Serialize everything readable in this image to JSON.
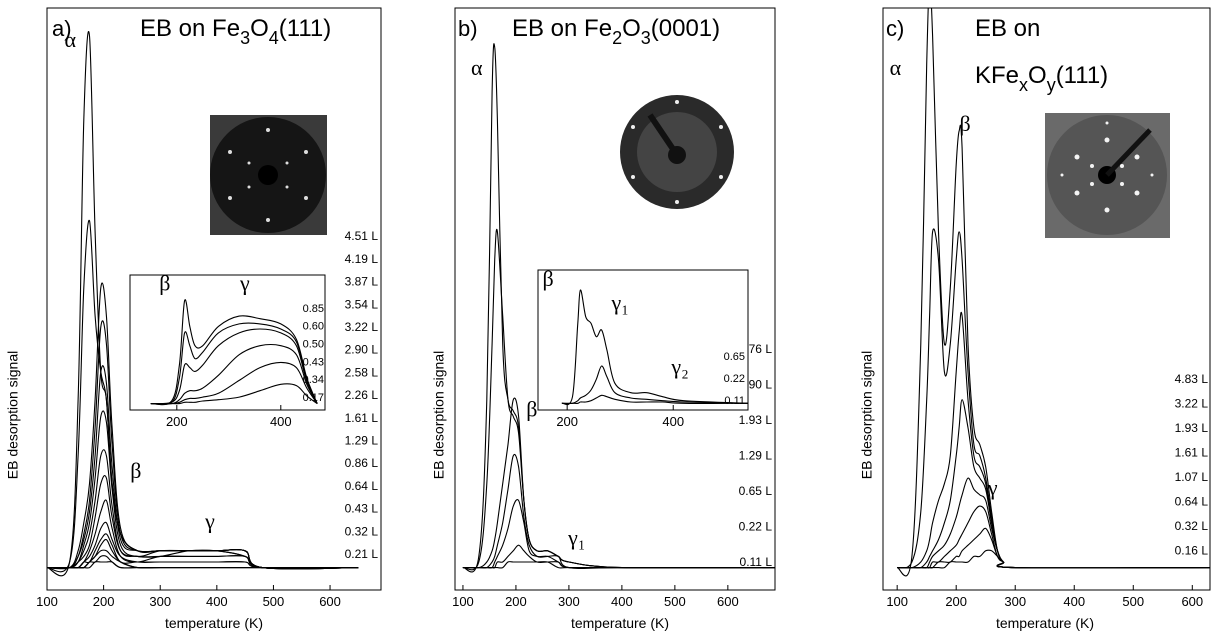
{
  "chart_data": [
    {
      "type": "line",
      "panel_label": "a)",
      "title": [
        [
          {
            "text": "EB on Fe"
          },
          {
            "text": "3",
            "sub": true
          },
          {
            "text": "O"
          },
          {
            "text": "4",
            "sub": true
          },
          {
            "text": "(111)"
          }
        ]
      ],
      "x_label": "temperature (K)",
      "y_label": "EB desorption signal",
      "color": "#000000",
      "xlim": [
        100,
        690
      ],
      "ylim": [
        -4,
        100
      ],
      "xticks": [
        100,
        200,
        300,
        400,
        500,
        600
      ],
      "x": [
        100,
        140,
        155,
        165,
        175,
        185,
        195,
        205,
        215,
        230,
        260,
        300,
        350,
        400,
        450,
        480,
        650
      ],
      "series": [
        {
          "name": "4.51 L",
          "values": [
            0,
            1,
            30,
            80,
            95,
            60,
            35,
            30,
            15,
            6,
            3,
            3,
            3,
            3,
            3,
            0,
            0
          ]
        },
        {
          "name": "4.19 L",
          "values": [
            0,
            1,
            20,
            50,
            62,
            45,
            35,
            30,
            15,
            6,
            3,
            3,
            3,
            3,
            3,
            0,
            0
          ]
        },
        {
          "name": "3.87 L",
          "values": [
            0,
            0,
            3,
            8,
            15,
            30,
            50,
            45,
            25,
            7,
            3,
            3,
            3,
            3,
            3,
            0,
            0
          ]
        },
        {
          "name": "3.54 L",
          "values": [
            0,
            0,
            2,
            6,
            12,
            25,
            43,
            40,
            22,
            6,
            3,
            3,
            3,
            3,
            3,
            0,
            0
          ]
        },
        {
          "name": "3.22 L",
          "values": [
            0,
            0,
            2,
            5,
            10,
            20,
            35,
            33,
            18,
            5,
            3,
            3,
            3,
            3,
            3,
            0,
            0
          ]
        },
        {
          "name": "2.90 L",
          "values": [
            0,
            0,
            1,
            4,
            8,
            16,
            27,
            26,
            14,
            4,
            2,
            3,
            3,
            3,
            2,
            0,
            0
          ]
        },
        {
          "name": "2.58 L",
          "values": [
            0,
            0,
            1,
            3,
            6,
            12,
            20,
            20,
            11,
            3,
            2,
            2,
            3,
            3,
            2,
            0,
            0
          ]
        },
        {
          "name": "2.26 L",
          "values": [
            0,
            0,
            1,
            2,
            4,
            9,
            15,
            16,
            9,
            3,
            2,
            2,
            2,
            2,
            2,
            0,
            0
          ]
        },
        {
          "name": "1.61 L",
          "values": [
            0,
            0,
            0,
            1,
            3,
            6,
            10,
            12,
            7,
            2,
            1,
            2,
            2,
            2,
            2,
            0,
            0
          ]
        },
        {
          "name": "1.29 L",
          "values": [
            0,
            0,
            0,
            1,
            2,
            4,
            7,
            8,
            5,
            2,
            1,
            1,
            1,
            1,
            1,
            0,
            0
          ]
        },
        {
          "name": "0.86 L",
          "values": [
            0,
            0,
            0,
            1,
            1,
            3,
            5,
            6,
            4,
            1,
            1,
            1,
            1,
            1,
            1,
            0,
            0
          ]
        },
        {
          "name": "0.64 L",
          "values": [
            0,
            0,
            0,
            0,
            1,
            2,
            4,
            5,
            3,
            1,
            0,
            0,
            0,
            0,
            0,
            0,
            0
          ]
        },
        {
          "name": "0.43 L",
          "values": [
            0,
            0,
            0,
            0,
            1,
            2,
            3,
            3,
            2,
            1,
            0,
            0,
            0,
            0,
            0,
            0,
            0
          ]
        },
        {
          "name": "0.32 L",
          "values": [
            0,
            0,
            0,
            0,
            1,
            1,
            2,
            2,
            1,
            0,
            0,
            0,
            0,
            0,
            0,
            0,
            0
          ]
        },
        {
          "name": "0.21 L",
          "values": [
            0,
            0,
            0,
            0,
            0,
            1,
            1,
            1,
            1,
            0,
            0,
            0,
            0,
            0,
            0,
            0,
            0
          ]
        }
      ],
      "annotations": [
        {
          "text": "α",
          "x": 141,
          "y": 93
        },
        {
          "text": "β",
          "x": 257,
          "y": 16
        },
        {
          "text": "γ",
          "x": 388,
          "y": 7
        }
      ]
    },
    {
      "type": "line",
      "color": "#000000",
      "xlim": [
        110,
        485
      ],
      "ylim": [
        -5,
        100
      ],
      "xticks": [
        200,
        400
      ],
      "x": [
        150,
        190,
        205,
        215,
        225,
        235,
        250,
        280,
        320,
        360,
        400,
        430,
        450,
        470
      ],
      "series": [
        {
          "name": "0.85",
          "values": [
            0,
            2,
            30,
            80,
            60,
            45,
            45,
            60,
            68,
            66,
            62,
            50,
            20,
            0
          ]
        },
        {
          "name": "0.60",
          "values": [
            0,
            1,
            20,
            55,
            45,
            35,
            40,
            55,
            62,
            62,
            58,
            48,
            18,
            0
          ]
        },
        {
          "name": "0.50",
          "values": [
            0,
            1,
            10,
            30,
            28,
            25,
            30,
            45,
            55,
            58,
            55,
            45,
            17,
            0
          ]
        },
        {
          "name": "0.43",
          "values": [
            0,
            0,
            3,
            8,
            10,
            10,
            12,
            22,
            38,
            45,
            45,
            38,
            15,
            0
          ]
        },
        {
          "name": "0.34",
          "values": [
            0,
            0,
            1,
            3,
            4,
            4,
            5,
            8,
            18,
            28,
            32,
            28,
            12,
            0
          ]
        },
        {
          "name": "0.17",
          "values": [
            0,
            0,
            0,
            1,
            1,
            1,
            2,
            3,
            5,
            10,
            15,
            14,
            6,
            0
          ]
        }
      ],
      "annotations": [
        {
          "text": "β",
          "x": 177,
          "y": 88
        },
        {
          "text": "γ",
          "x": 331,
          "y": 88
        }
      ]
    },
    {
      "type": "line",
      "panel_label": "b)",
      "title": [
        [
          {
            "text": "EB on Fe"
          },
          {
            "text": "2",
            "sub": true
          },
          {
            "text": "O"
          },
          {
            "text": "3",
            "sub": true
          },
          {
            "text": "(0001)"
          }
        ]
      ],
      "x_label": "temperature (K)",
      "y_label": "EB desorption signal",
      "color": "#000000",
      "xlim": [
        85,
        689
      ],
      "ylim": [
        -4,
        100
      ],
      "xticks": [
        100,
        200,
        300,
        400,
        500,
        600
      ],
      "x": [
        100,
        130,
        145,
        155,
        160,
        165,
        175,
        185,
        195,
        205,
        215,
        225,
        240,
        260,
        280,
        300,
        400,
        689
      ],
      "series": [
        {
          "name": "3.76 L",
          "values": [
            0,
            2,
            30,
            85,
            93,
            80,
            40,
            30,
            28,
            25,
            12,
            5,
            3,
            3,
            2,
            1,
            0,
            0
          ]
        },
        {
          "name": "2.90 L",
          "values": [
            0,
            1,
            15,
            40,
            55,
            60,
            45,
            30,
            27,
            24,
            12,
            5,
            3,
            3,
            2,
            1,
            0,
            0
          ]
        },
        {
          "name": "1.93 L",
          "values": [
            0,
            0,
            1,
            3,
            5,
            8,
            15,
            22,
            30,
            27,
            12,
            5,
            3,
            3,
            2,
            1,
            0,
            0
          ]
        },
        {
          "name": "1.29 L",
          "values": [
            0,
            0,
            0,
            1,
            2,
            4,
            8,
            14,
            20,
            18,
            9,
            4,
            2,
            2,
            2,
            0,
            0,
            0
          ]
        },
        {
          "name": "0.65 L",
          "values": [
            0,
            0,
            0,
            0,
            1,
            2,
            4,
            7,
            11,
            12,
            8,
            3,
            2,
            2,
            1,
            0,
            0,
            0
          ]
        },
        {
          "name": "0.22 L",
          "values": [
            0,
            0,
            0,
            0,
            0,
            1,
            1,
            2,
            3,
            4,
            3,
            2,
            1,
            1,
            1,
            0,
            0,
            0
          ]
        },
        {
          "name": "0.11 L",
          "values": [
            0,
            0,
            0,
            0,
            0,
            0,
            0,
            1,
            1,
            1,
            1,
            1,
            1,
            1,
            0,
            0,
            0,
            0
          ]
        }
      ],
      "annotations": [
        {
          "text": "α",
          "x": 126,
          "y": 88
        },
        {
          "text": "β",
          "x": 230,
          "y": 27
        },
        {
          "text": "γ₁",
          "x": 315,
          "y": 4
        }
      ]
    },
    {
      "type": "line",
      "color": "#000000",
      "xlim": [
        145,
        541
      ],
      "ylim": [
        -5,
        100
      ],
      "xticks": [
        200,
        400
      ],
      "x": [
        190,
        210,
        220,
        225,
        235,
        245,
        255,
        265,
        275,
        290,
        320,
        350,
        380,
        420,
        541
      ],
      "series": [
        {
          "name": "0.65",
          "values": [
            0,
            5,
            60,
            85,
            65,
            60,
            50,
            55,
            40,
            15,
            8,
            8,
            5,
            2,
            0
          ]
        },
        {
          "name": "0.22",
          "values": [
            0,
            0,
            2,
            4,
            6,
            10,
            18,
            28,
            20,
            8,
            4,
            3,
            2,
            1,
            0
          ]
        },
        {
          "name": "0.11",
          "values": [
            0,
            0,
            0,
            1,
            1,
            2,
            4,
            6,
            5,
            3,
            1,
            1,
            1,
            0,
            0
          ]
        }
      ],
      "annotations": [
        {
          "text": "β",
          "x": 164,
          "y": 88
        },
        {
          "text": "γ₁",
          "x": 300,
          "y": 70
        },
        {
          "text": "γ₂",
          "x": 413,
          "y": 22
        }
      ]
    },
    {
      "type": "line",
      "panel_label": "c)",
      "title": [
        [
          {
            "text": "EB on"
          }
        ],
        [
          {
            "text": "KFe"
          },
          {
            "text": "x",
            "sub": true
          },
          {
            "text": "O"
          },
          {
            "text": "y",
            "sub": true
          },
          {
            "text": "(111)"
          }
        ]
      ],
      "x_label": "temperature (K)",
      "y_label": "EB desorption signal",
      "color": "#000000",
      "xlim": [
        76,
        630
      ],
      "ylim": [
        -4,
        100
      ],
      "xticks": [
        100,
        200,
        300,
        400,
        500,
        600
      ],
      "x": [
        100,
        125,
        140,
        150,
        155,
        160,
        170,
        180,
        190,
        200,
        205,
        210,
        220,
        230,
        240,
        250,
        260,
        270,
        280,
        300,
        630
      ],
      "series": [
        {
          "name": "4.83 L",
          "values": [
            0,
            2,
            40,
            90,
            104,
            95,
            60,
            40,
            50,
            72,
            78,
            75,
            40,
            25,
            22,
            18,
            10,
            3,
            1,
            0,
            0
          ]
        },
        {
          "name": "3.22 L",
          "values": [
            0,
            1,
            10,
            30,
            45,
            60,
            55,
            35,
            40,
            55,
            60,
            55,
            35,
            22,
            20,
            16,
            9,
            3,
            1,
            0,
            0
          ]
        },
        {
          "name": "1.93 L",
          "values": [
            0,
            0,
            1,
            3,
            5,
            8,
            12,
            15,
            20,
            35,
            42,
            45,
            30,
            20,
            18,
            15,
            8,
            3,
            1,
            0,
            0
          ]
        },
        {
          "name": "1.61 L",
          "values": [
            0,
            0,
            0,
            1,
            2,
            3,
            5,
            8,
            12,
            20,
            25,
            30,
            25,
            18,
            16,
            14,
            8,
            3,
            1,
            0,
            0
          ]
        },
        {
          "name": "1.07 L",
          "values": [
            0,
            0,
            0,
            0,
            1,
            2,
            3,
            4,
            6,
            9,
            11,
            13,
            16,
            14,
            13,
            12,
            7,
            3,
            1,
            0,
            0
          ]
        },
        {
          "name": "0.64 L",
          "values": [
            0,
            0,
            0,
            0,
            0,
            1,
            1,
            2,
            3,
            4,
            5,
            6,
            8,
            10,
            11,
            10,
            6,
            2,
            1,
            0,
            0
          ]
        },
        {
          "name": "0.32 L",
          "values": [
            0,
            0,
            0,
            0,
            0,
            0,
            1,
            1,
            1,
            2,
            2,
            3,
            4,
            5,
            6,
            7,
            5,
            2,
            1,
            0,
            0
          ]
        },
        {
          "name": "0.16 L",
          "values": [
            0,
            0,
            0,
            0,
            0,
            0,
            0,
            0,
            1,
            1,
            1,
            1,
            1,
            2,
            2,
            3,
            3,
            2,
            1,
            0,
            0
          ]
        }
      ],
      "annotations": [
        {
          "text": "α",
          "x": 97,
          "y": 88
        },
        {
          "text": "β",
          "x": 215,
          "y": 78
        },
        {
          "text": "γ",
          "x": 262,
          "y": 13
        }
      ]
    }
  ]
}
